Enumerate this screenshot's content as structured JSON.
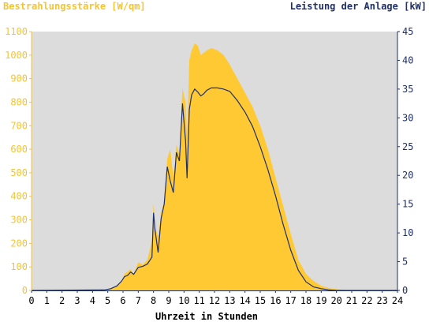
{
  "chart_data": {
    "type": "area",
    "ylabel_left": "Bestrahlungsstärke [W/qm]",
    "ylabel_right": "Leistung der Anlage [kW]",
    "xlabel": "Uhrzeit in Stunden",
    "xlim": [
      0,
      24
    ],
    "ylim_left": [
      0,
      1100
    ],
    "ylim_right": [
      0,
      45
    ],
    "x_ticks": [
      0,
      1,
      2,
      3,
      4,
      5,
      6,
      7,
      8,
      9,
      10,
      11,
      12,
      13,
      14,
      15,
      16,
      17,
      18,
      19,
      20,
      21,
      22,
      23,
      24
    ],
    "y_ticks_left": [
      0,
      100,
      200,
      300,
      400,
      500,
      600,
      700,
      800,
      900,
      1000,
      1100
    ],
    "y_ticks_right": [
      0,
      5,
      10,
      15,
      20,
      25,
      30,
      35,
      40,
      45
    ],
    "colors": {
      "irradiance_fill": "#ffc933",
      "power_line": "#1f2f6b",
      "plot_background": "#dcdcdc",
      "left_axis": "#f5c431",
      "right_axis": "#1f2f6b"
    },
    "series": [
      {
        "axis": "left",
        "style": "area",
        "x": [
          0,
          4.8,
          5.2,
          5.6,
          5.9,
          6.1,
          6.3,
          6.5,
          6.7,
          7.0,
          7.3,
          7.6,
          7.9,
          8.0,
          8.1,
          8.3,
          8.5,
          8.7,
          8.9,
          9.1,
          9.3,
          9.5,
          9.7,
          9.9,
          10.1,
          10.2,
          10.35,
          10.5,
          10.7,
          10.9,
          11.1,
          11.3,
          11.5,
          11.8,
          12.2,
          12.6,
          13.0,
          13.5,
          14.0,
          14.5,
          15.0,
          15.5,
          16.0,
          16.5,
          17.0,
          17.5,
          18.0,
          18.5,
          19.0,
          19.5,
          20.0,
          20.5,
          21.0,
          24
        ],
        "y": [
          0,
          2,
          10,
          20,
          40,
          70,
          80,
          90,
          70,
          120,
          110,
          130,
          210,
          370,
          270,
          230,
          330,
          380,
          560,
          600,
          480,
          620,
          580,
          860,
          800,
          640,
          980,
          1020,
          1050,
          1040,
          1000,
          1010,
          1020,
          1030,
          1020,
          1000,
          960,
          900,
          840,
          780,
          700,
          600,
          480,
          360,
          240,
          130,
          70,
          40,
          20,
          10,
          5,
          2,
          0,
          0
        ]
      },
      {
        "axis": "right",
        "style": "line",
        "x": [
          0,
          4.8,
          5.2,
          5.6,
          5.9,
          6.1,
          6.3,
          6.5,
          6.7,
          7.0,
          7.3,
          7.6,
          7.9,
          8.0,
          8.1,
          8.3,
          8.5,
          8.7,
          8.9,
          9.1,
          9.3,
          9.5,
          9.7,
          9.9,
          10.1,
          10.2,
          10.35,
          10.5,
          10.7,
          10.9,
          11.1,
          11.3,
          11.5,
          11.8,
          12.2,
          12.6,
          13.0,
          13.5,
          14.0,
          14.5,
          15.0,
          15.5,
          16.0,
          16.5,
          17.0,
          17.5,
          18.0,
          18.5,
          19.0,
          19.5,
          20.0,
          20.5,
          21.0,
          24
        ],
        "y": [
          0,
          0.1,
          0.3,
          0.8,
          1.6,
          2.4,
          2.6,
          3.2,
          2.8,
          4.0,
          4.2,
          4.6,
          5.8,
          13.5,
          10.5,
          6.6,
          12.5,
          15.0,
          21.5,
          19.0,
          17.0,
          24.0,
          22.5,
          32.5,
          26.0,
          19.5,
          31.5,
          34.0,
          35.0,
          34.5,
          33.8,
          34.2,
          34.8,
          35.2,
          35.2,
          35.0,
          34.6,
          33.0,
          31.0,
          28.5,
          25.0,
          21.0,
          16.5,
          11.5,
          7.0,
          3.5,
          1.5,
          0.6,
          0.3,
          0.1,
          0,
          0,
          0,
          0
        ]
      }
    ]
  }
}
